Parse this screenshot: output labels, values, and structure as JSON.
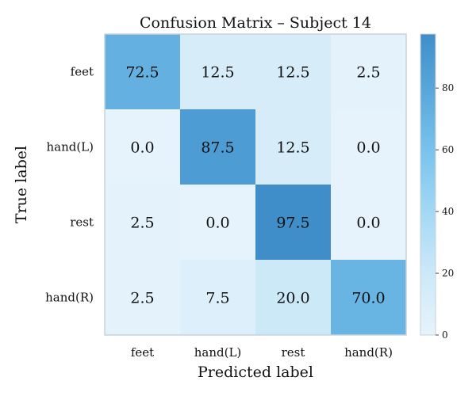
{
  "chart_data": {
    "type": "heatmap",
    "title": "Confusion Matrix – Subject 14",
    "xlabel": "Predicted label",
    "ylabel": "True label",
    "x_categories": [
      "feet",
      "hand(L)",
      "rest",
      "hand(R)"
    ],
    "y_categories": [
      "feet",
      "hand(L)",
      "rest",
      "hand(R)"
    ],
    "values": [
      [
        72.5,
        12.5,
        12.5,
        2.5
      ],
      [
        0.0,
        87.5,
        12.5,
        0.0
      ],
      [
        2.5,
        0.0,
        97.5,
        0.0
      ],
      [
        2.5,
        7.5,
        20.0,
        70.0
      ]
    ],
    "colorbar": {
      "range": [
        0,
        97.5
      ],
      "ticks": [
        0,
        20,
        40,
        60,
        80
      ]
    },
    "colormap": [
      "#e6f3fc",
      "#cde9f8",
      "#a5d9f5",
      "#7cc4ec",
      "#5aa9dc",
      "#3f8ec9"
    ]
  }
}
